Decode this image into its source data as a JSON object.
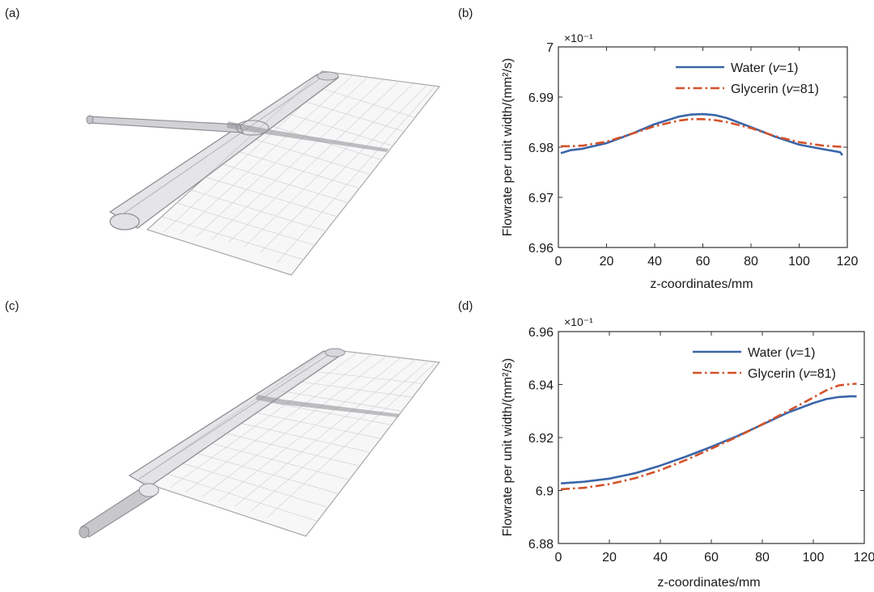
{
  "panels": {
    "a": "(a)",
    "b": "(b)",
    "c": "(c)",
    "d": "(d)"
  },
  "colors": {
    "water": "#3a65a8",
    "glycerin": "#d2522a",
    "frame": "#333333",
    "mesh": "#a9a9ad",
    "tube": "#8e8e94"
  },
  "chart_data": [
    {
      "id": "b",
      "type": "line",
      "title": "",
      "multiplier": "×10⁻¹",
      "xlabel": "z-coordinates/mm",
      "ylabel": "Flowrate per unit width/(mm²/s)",
      "xlim": [
        0,
        120
      ],
      "ylim": [
        6.96,
        7.0
      ],
      "xticks": [
        0,
        20,
        40,
        60,
        80,
        100,
        120
      ],
      "yticks": [
        6.96,
        6.97,
        6.98,
        6.99,
        7.0
      ],
      "ytick_labels": [
        "6.96",
        "6.97",
        "6.98",
        "6.99",
        "7"
      ],
      "legend_position": "top-right",
      "series": [
        {
          "name": "Water (ν=1)",
          "legend_prefix": "Water (",
          "legend_var": "v",
          "legend_suffix": "=1)",
          "style": "solid",
          "x": [
            1,
            5,
            10,
            20,
            30,
            40,
            50,
            55,
            60,
            65,
            70,
            80,
            90,
            100,
            110,
            117,
            118
          ],
          "y": [
            6.9788,
            6.9794,
            6.9797,
            6.9808,
            6.9826,
            6.9846,
            6.9861,
            6.9865,
            6.9866,
            6.9864,
            6.9858,
            6.984,
            6.9821,
            6.9805,
            6.9796,
            6.979,
            6.9784
          ]
        },
        {
          "name": "Glycerin (ν=81)",
          "legend_prefix": "Glycerin (",
          "legend_var": "v",
          "legend_suffix": "=81)",
          "style": "dashdot",
          "x": [
            1,
            5,
            10,
            20,
            30,
            40,
            50,
            55,
            60,
            65,
            70,
            80,
            90,
            100,
            110,
            117,
            118
          ],
          "y": [
            6.9802,
            6.9802,
            6.9803,
            6.9811,
            6.9826,
            6.9842,
            6.9853,
            6.9856,
            6.9856,
            6.9854,
            6.985,
            6.9838,
            6.9822,
            6.981,
            6.9803,
            6.9801,
            6.98
          ]
        }
      ]
    },
    {
      "id": "d",
      "type": "line",
      "title": "",
      "multiplier": "×10⁻¹",
      "xlabel": "z-coordinates/mm",
      "ylabel": "Flowrate per unit width/(mm²/s)",
      "xlim": [
        0,
        120
      ],
      "ylim": [
        6.88,
        6.96
      ],
      "xticks": [
        0,
        20,
        40,
        60,
        80,
        100,
        120
      ],
      "yticks": [
        6.88,
        6.9,
        6.92,
        6.94,
        6.96
      ],
      "ytick_labels": [
        "6.88",
        "6.9",
        "6.92",
        "6.94",
        "6.96"
      ],
      "legend_position": "top-right",
      "series": [
        {
          "name": "Water (ν=1)",
          "legend_prefix": "Water (",
          "legend_var": "v",
          "legend_suffix": "=1)",
          "style": "solid",
          "x": [
            1,
            10,
            20,
            30,
            40,
            50,
            60,
            70,
            80,
            90,
            100,
            105,
            110,
            115,
            117
          ],
          "y": [
            6.9027,
            6.9033,
            6.9045,
            6.9065,
            6.9094,
            6.9128,
            6.9165,
            6.9205,
            6.9249,
            6.9294,
            6.933,
            6.9345,
            6.9353,
            6.9356,
            6.9355
          ]
        },
        {
          "name": "Glycerin (ν=81)",
          "legend_prefix": "Glycerin (",
          "legend_var": "v",
          "legend_suffix": "=81)",
          "style": "dashdot",
          "x": [
            1,
            10,
            20,
            30,
            40,
            50,
            60,
            70,
            80,
            90,
            100,
            105,
            110,
            115,
            117
          ],
          "y": [
            6.9005,
            6.901,
            6.9024,
            6.9046,
            6.9077,
            6.9115,
            6.9158,
            6.9202,
            6.925,
            6.93,
            6.9351,
            6.9378,
            6.9397,
            6.9402,
            6.9403
          ]
        }
      ]
    }
  ]
}
